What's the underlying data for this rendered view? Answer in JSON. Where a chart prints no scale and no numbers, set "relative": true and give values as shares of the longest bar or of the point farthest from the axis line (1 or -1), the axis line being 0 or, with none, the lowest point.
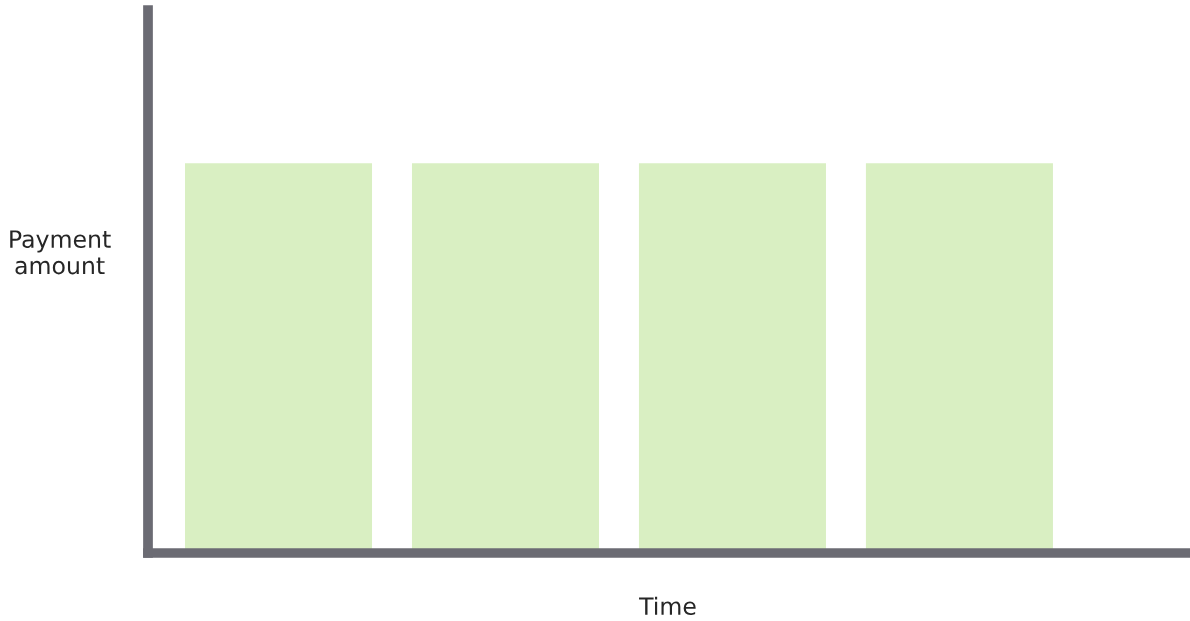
{
  "chart_data": {
    "type": "bar",
    "xlabel": "Time",
    "ylabel": "Payment amount",
    "categories": [
      null,
      null,
      null,
      null
    ],
    "values": [
      1,
      1,
      1,
      1
    ],
    "color": "#d9efc2",
    "relative": true,
    "grid": false,
    "legend": false
  }
}
